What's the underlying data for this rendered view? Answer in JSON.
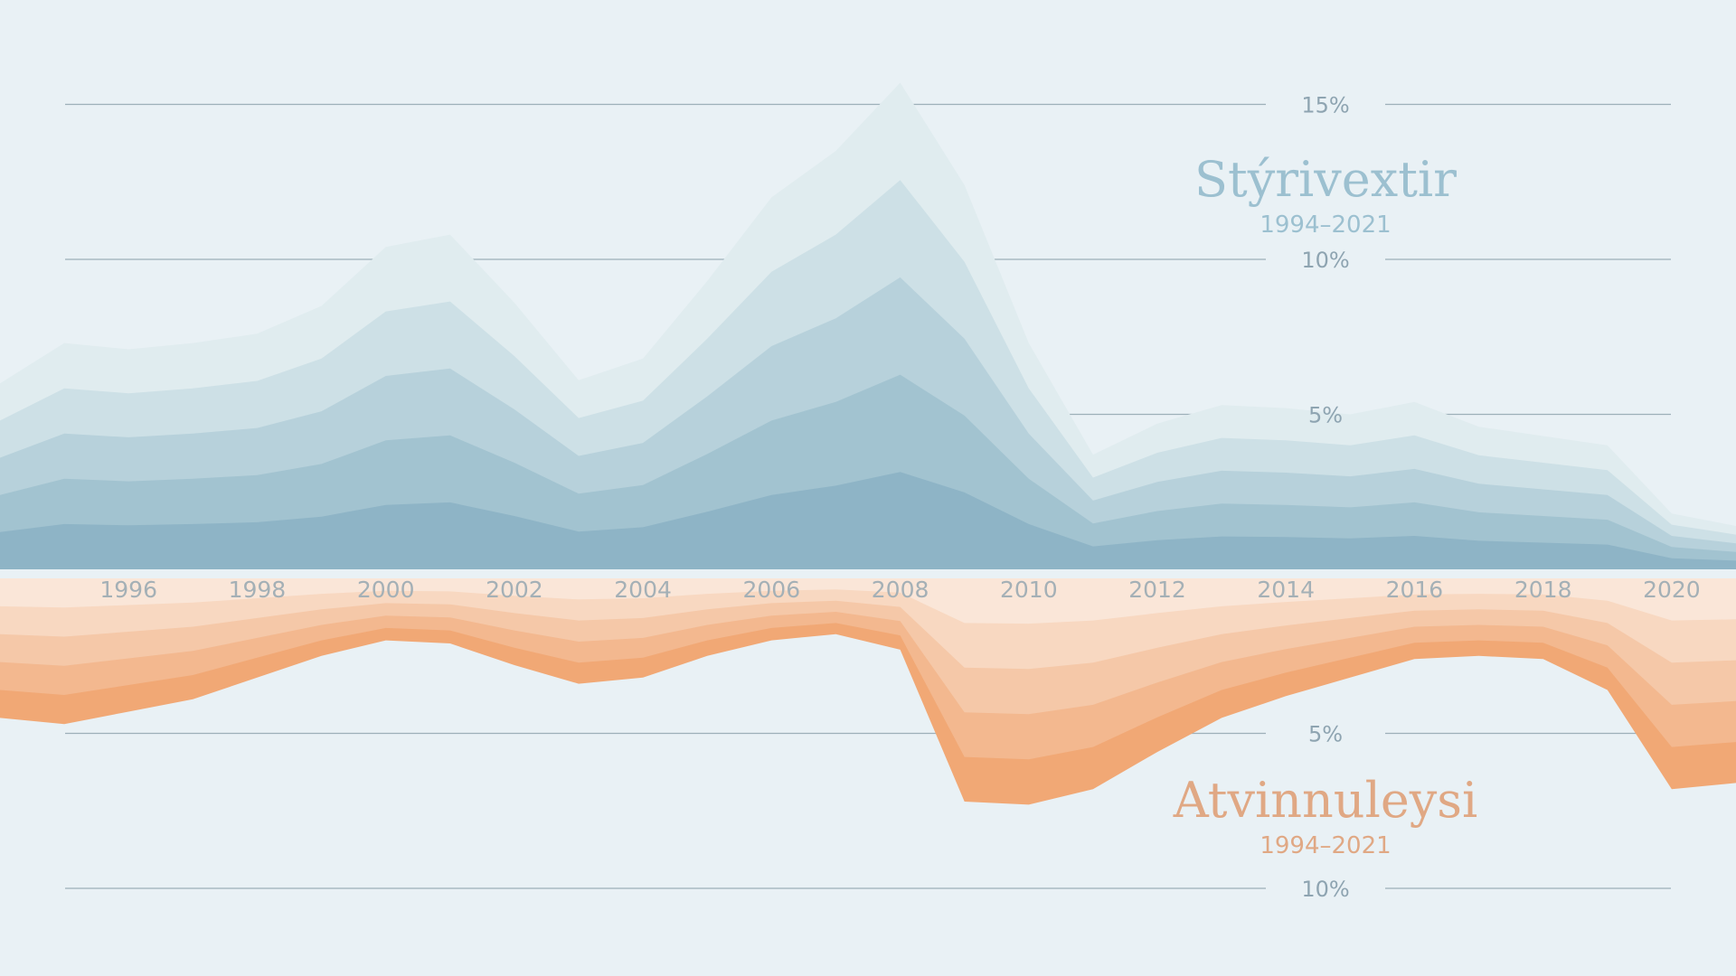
{
  "chart_data": [
    {
      "type": "area",
      "title": "Stýrivextir",
      "subtitle": "1994–2021",
      "ytick_labels": [
        "5%",
        "10%",
        "15%"
      ],
      "ylim": [
        0,
        15
      ],
      "x": [
        1994,
        1995,
        1996,
        1997,
        1998,
        1999,
        2000,
        2001,
        2002,
        2003,
        2004,
        2005,
        2006,
        2007,
        2008,
        2009,
        2010,
        2011,
        2012,
        2013,
        2014,
        2015,
        2016,
        2017,
        2018,
        2019,
        2020,
        2021
      ],
      "values": [
        4.4,
        5.7,
        5.5,
        5.7,
        6.0,
        6.9,
        8.8,
        9.2,
        7.0,
        4.5,
        5.2,
        7.7,
        10.4,
        11.9,
        14.1,
        10.8,
        5.7,
        2.1,
        3.1,
        3.7,
        3.6,
        3.4,
        3.8,
        3.0,
        2.7,
        2.4,
        0.2,
        -0.2
      ],
      "color": "#8eb4c6"
    },
    {
      "type": "area",
      "title": "Atvinnuleysi",
      "subtitle": "1994–2021",
      "ytick_labels": [
        "5%",
        "10%"
      ],
      "ylim": [
        0,
        10
      ],
      "x": [
        1994,
        1995,
        1996,
        1997,
        1998,
        1999,
        2000,
        2001,
        2002,
        2003,
        2004,
        2005,
        2006,
        2007,
        2008,
        2009,
        2010,
        2011,
        2012,
        2013,
        2014,
        2015,
        2016,
        2017,
        2018,
        2019,
        2020,
        2021
      ],
      "values": [
        4.5,
        4.7,
        4.3,
        3.9,
        3.2,
        2.5,
        2.0,
        2.1,
        2.8,
        3.4,
        3.2,
        2.5,
        2.0,
        1.8,
        2.3,
        7.2,
        7.3,
        6.8,
        5.6,
        4.5,
        3.8,
        3.2,
        2.6,
        2.5,
        2.6,
        3.6,
        6.8,
        6.6
      ],
      "color": "#f1a875"
    }
  ],
  "x_axis": {
    "tick_labels": [
      "1996",
      "1998",
      "2000",
      "2002",
      "2004",
      "2006",
      "2008",
      "2010",
      "2012",
      "2014",
      "2016",
      "2018",
      "2020"
    ]
  },
  "colors": {
    "background": "#e9f1f5",
    "rates_title": "#9cc0d0",
    "unemployment_title": "#e0a884",
    "tick_label": "#8ea4b1",
    "year_label": "#a4b0b6"
  }
}
